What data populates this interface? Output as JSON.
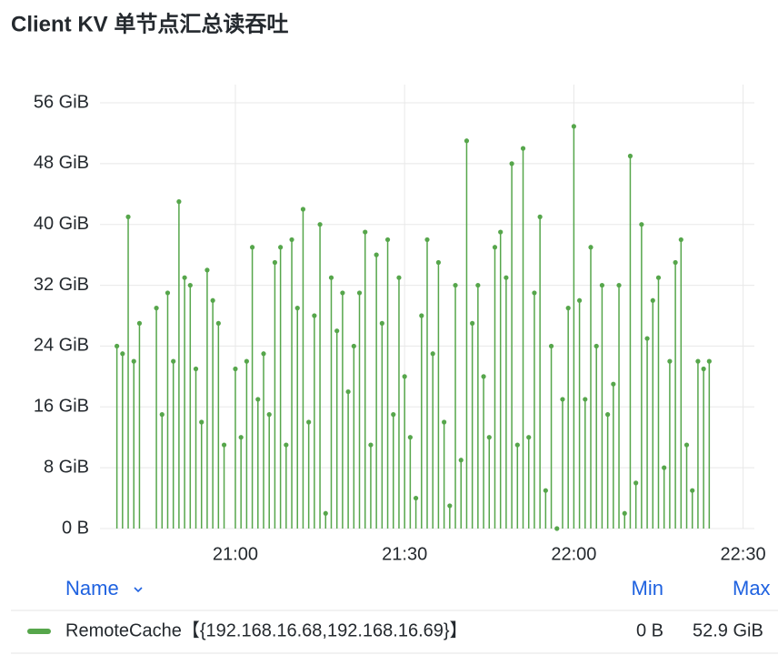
{
  "chart_data": {
    "type": "stem",
    "title": "Client KV 单节点汇总读吞吐",
    "x": [
      "20:39",
      "20:40",
      "20:41",
      "20:42",
      "20:43",
      "20:44",
      "20:45",
      "20:46",
      "20:47",
      "20:48",
      "20:49",
      "20:50",
      "20:51",
      "20:52",
      "20:53",
      "20:54",
      "20:55",
      "20:56",
      "20:57",
      "20:58",
      "20:59",
      "21:00",
      "21:01",
      "21:02",
      "21:03",
      "21:04",
      "21:05",
      "21:06",
      "21:07",
      "21:08",
      "21:09",
      "21:10",
      "21:11",
      "21:12",
      "21:13",
      "21:14",
      "21:15",
      "21:16",
      "21:17",
      "21:18",
      "21:19",
      "21:20",
      "21:21",
      "21:22",
      "21:23",
      "21:24",
      "21:25",
      "21:26",
      "21:27",
      "21:28",
      "21:29",
      "21:30",
      "21:31",
      "21:32",
      "21:33",
      "21:34",
      "21:35",
      "21:36",
      "21:37",
      "21:38",
      "21:39",
      "21:40",
      "21:41",
      "21:42",
      "21:43",
      "21:44",
      "21:45",
      "21:46",
      "21:47",
      "21:48",
      "21:49",
      "21:50",
      "21:51",
      "21:52",
      "21:53",
      "21:54",
      "21:55",
      "21:56",
      "21:57",
      "21:58",
      "21:59",
      "22:00",
      "22:01",
      "22:02",
      "22:03",
      "22:04",
      "22:05",
      "22:06",
      "22:07",
      "22:08",
      "22:09",
      "22:10",
      "22:11",
      "22:12",
      "22:13",
      "22:14",
      "22:15",
      "22:16",
      "22:17",
      "22:18",
      "22:19",
      "22:20",
      "22:21",
      "22:22",
      "22:23",
      "22:24"
    ],
    "series": [
      {
        "name": "RemoteCache【{192.168.16.68,192.168.16.69}】",
        "color": "#56a64b",
        "min_label": "0 B",
        "max_label": "52.9 GiB",
        "values": [
          24,
          23,
          41,
          22,
          27,
          null,
          null,
          29,
          15,
          31,
          22,
          43,
          33,
          32,
          21,
          14,
          34,
          30,
          27,
          11,
          null,
          21,
          12,
          22,
          37,
          17,
          23,
          15,
          35,
          37,
          11,
          38,
          29,
          42,
          14,
          28,
          40,
          2,
          33,
          26,
          31,
          18,
          24,
          31,
          39,
          11,
          36,
          27,
          38,
          15,
          33,
          20,
          12,
          4,
          28,
          38,
          23,
          35,
          14,
          3,
          32,
          9,
          51,
          27,
          32,
          20,
          12,
          37,
          39,
          33,
          48,
          11,
          50,
          12,
          31,
          41,
          5,
          24,
          0,
          17,
          29,
          52.9,
          30,
          17,
          37,
          24,
          32,
          15,
          19,
          32,
          2,
          49,
          6,
          40,
          25,
          30,
          33,
          8,
          22,
          35,
          38,
          11,
          5,
          22,
          21,
          22
        ]
      }
    ],
    "xlim": [
      "20:36",
      "22:32"
    ],
    "xticks": [
      "21:00",
      "21:30",
      "22:00",
      "22:30"
    ],
    "ylim": [
      0,
      56
    ],
    "yticks": [
      {
        "value": 0,
        "label": "0 B"
      },
      {
        "value": 8,
        "label": "8 GiB"
      },
      {
        "value": 16,
        "label": "16 GiB"
      },
      {
        "value": 24,
        "label": "24 GiB"
      },
      {
        "value": 32,
        "label": "32 GiB"
      },
      {
        "value": 40,
        "label": "40 GiB"
      },
      {
        "value": 48,
        "label": "48 GiB"
      },
      {
        "value": 56,
        "label": "56 GiB"
      }
    ],
    "grid": true,
    "legend_headers": {
      "name": "Name",
      "min": "Min",
      "max": "Max"
    }
  }
}
